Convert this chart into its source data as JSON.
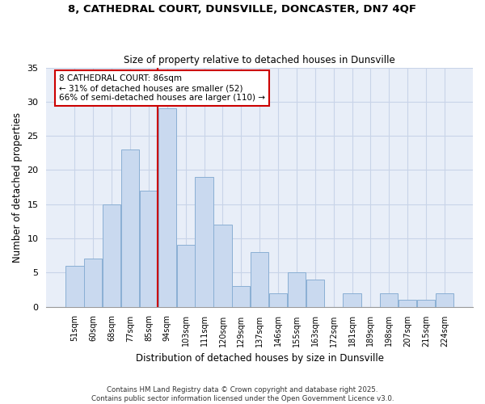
{
  "title1": "8, CATHEDRAL COURT, DUNSVILLE, DONCASTER, DN7 4QF",
  "title2": "Size of property relative to detached houses in Dunsville",
  "xlabel": "Distribution of detached houses by size in Dunsville",
  "ylabel": "Number of detached properties",
  "categories": [
    "51sqm",
    "60sqm",
    "68sqm",
    "77sqm",
    "85sqm",
    "94sqm",
    "103sqm",
    "111sqm",
    "120sqm",
    "129sqm",
    "137sqm",
    "146sqm",
    "155sqm",
    "163sqm",
    "172sqm",
    "181sqm",
    "189sqm",
    "198sqm",
    "207sqm",
    "215sqm",
    "224sqm"
  ],
  "values": [
    6,
    7,
    15,
    23,
    17,
    29,
    9,
    19,
    12,
    3,
    8,
    2,
    5,
    4,
    0,
    2,
    0,
    2,
    1,
    1,
    2
  ],
  "bar_color": "#c9d9ef",
  "bar_edgecolor": "#8aafd4",
  "reference_line_color": "#cc0000",
  "annotation_line1": "8 CATHEDRAL COURT: 86sqm",
  "annotation_line2": "← 31% of detached houses are smaller (52)",
  "annotation_line3": "66% of semi-detached houses are larger (110) →",
  "annotation_box_color": "#ffffff",
  "annotation_box_edgecolor": "#cc0000",
  "ylim": [
    0,
    35
  ],
  "yticks": [
    0,
    5,
    10,
    15,
    20,
    25,
    30,
    35
  ],
  "grid_color": "#c8d4e8",
  "background_color": "#e8eef8",
  "footer1": "Contains HM Land Registry data © Crown copyright and database right 2025.",
  "footer2": "Contains public sector information licensed under the Open Government Licence v3.0."
}
